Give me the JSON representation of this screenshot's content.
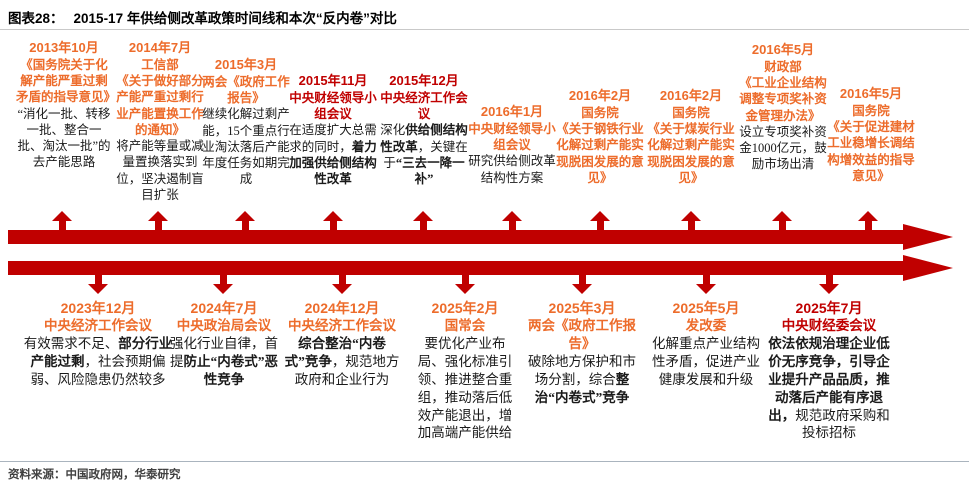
{
  "header": {
    "figure_label": "图表28：",
    "title": "2015-17 年供给侧改革政策时间线和本次“反内卷”对比"
  },
  "colors": {
    "accent_red": "#C00000",
    "accent_orange": "#ED6C2B"
  },
  "top_events": [
    {
      "color": "orange",
      "date": "2013年10月",
      "org": "",
      "title": "《国务院关于化解产能严重过剩矛盾的指导意见》",
      "body": [
        {
          "t": "“消化一批、转移一批、整合一批、淘汰一批”的去产能思路",
          "b": false
        }
      ]
    },
    {
      "color": "orange",
      "date": "2014年7月",
      "org": "工信部",
      "title": "《关于做好部分产能严重过剩行业产能置换工作的通知》",
      "body": [
        {
          "t": "将产能等量或减量置换落实到位，坚决遏制盲目扩张",
          "b": false
        }
      ]
    },
    {
      "color": "orange",
      "date": "2015年3月",
      "org": "",
      "title": "两会《政府工作报告》",
      "body": [
        {
          "t": "继续化解过剩产能，15个重点行业淘汰落后产能年度任务如期完成",
          "b": false
        }
      ]
    },
    {
      "color": "red",
      "date": "2015年11月",
      "org": "",
      "title": "中央财经领导小组会议",
      "body": [
        {
          "t": "在适度扩大总需求的同时，",
          "b": false
        },
        {
          "t": "着力加强供给侧结构性改革",
          "b": true
        }
      ]
    },
    {
      "color": "red",
      "date": "2015年12月",
      "org": "",
      "title": "中央经济工作会议",
      "body": [
        {
          "t": "深化",
          "b": false
        },
        {
          "t": "供给侧结构性改革",
          "b": true
        },
        {
          "t": "，关键在于",
          "b": false
        },
        {
          "t": "“三去一降一补”",
          "b": true
        }
      ]
    },
    {
      "color": "orange",
      "date": "2016年1月",
      "org": "",
      "title": "中央财经领导小组会议",
      "body": [
        {
          "t": "研究供给侧改革结构性方案",
          "b": false
        }
      ]
    },
    {
      "color": "orange",
      "date": "2016年2月",
      "org": "国务院",
      "title": "《关于钢铁行业化解过剩产能实现脱困发展的意见》",
      "body": []
    },
    {
      "color": "orange",
      "date": "2016年2月",
      "org": "国务院",
      "title": "《关于煤炭行业化解过剩产能实现脱困发展的意见》",
      "body": []
    },
    {
      "color": "orange",
      "date": "2016年5月",
      "org": "财政部",
      "title": "《工业企业结构调整专项奖补资金管理办法》",
      "body": [
        {
          "t": "设立专项奖补资金1000亿元，鼓励市场出清",
          "b": false
        }
      ]
    },
    {
      "color": "orange",
      "date": "2016年5月",
      "org": "国务院",
      "title": "《关于促进建材工业稳增长调结构增效益的指导意见》",
      "body": []
    }
  ],
  "bottom_events": [
    {
      "color": "orange",
      "date": "2023年12月",
      "org": "",
      "title": "中央经济工作会议",
      "body": [
        {
          "t": "有效需求不足、",
          "b": false
        },
        {
          "t": "部分行业产能过剩",
          "b": true
        },
        {
          "t": "，社会预期偏弱、风险隐患仍然较多",
          "b": false
        }
      ]
    },
    {
      "color": "orange",
      "date": "2024年7月",
      "org": "",
      "title": "中央政治局会议",
      "body": [
        {
          "t": "强化行业自律，首提",
          "b": false
        },
        {
          "t": "防止“内卷式”恶性竞争",
          "b": true
        }
      ]
    },
    {
      "color": "orange",
      "date": "2024年12月",
      "org": "",
      "title": "中央经济工作会议",
      "body": [
        {
          "t": "综合整治“内卷式”竞争",
          "b": true
        },
        {
          "t": "，规范地方政府和企业行为",
          "b": false
        }
      ]
    },
    {
      "color": "orange",
      "date": "2025年2月",
      "org": "",
      "title": "国常会",
      "body": [
        {
          "t": "要优化产业布局、强化标准引领、推进整合重组，推动落后低效产能退出，增加高端产能供给",
          "b": false
        }
      ]
    },
    {
      "color": "orange",
      "date": "2025年3月",
      "org": "",
      "title": "两会《政府工作报告》",
      "body": [
        {
          "t": "破除地方保护和市场分割，综合",
          "b": false
        },
        {
          "t": "整治“内卷式”竞争",
          "b": true
        }
      ]
    },
    {
      "color": "orange",
      "date": "2025年5月",
      "org": "",
      "title": "发改委",
      "body": [
        {
          "t": "化解重点产业结构性矛盾，促进产业健康发展和升级",
          "b": false
        }
      ]
    },
    {
      "color": "red",
      "date": "2025年7月",
      "org": "",
      "title": "中央财经委会议",
      "body": [
        {
          "t": "依法依规治理企业低价无序竞争，引导企业提升产品品质，推动落后产能有序退出，",
          "b": true
        },
        {
          "t": "规范政府采购和投标招标",
          "b": false
        }
      ]
    }
  ],
  "footer": {
    "source": "资料来源：中国政府网，华泰研究"
  }
}
